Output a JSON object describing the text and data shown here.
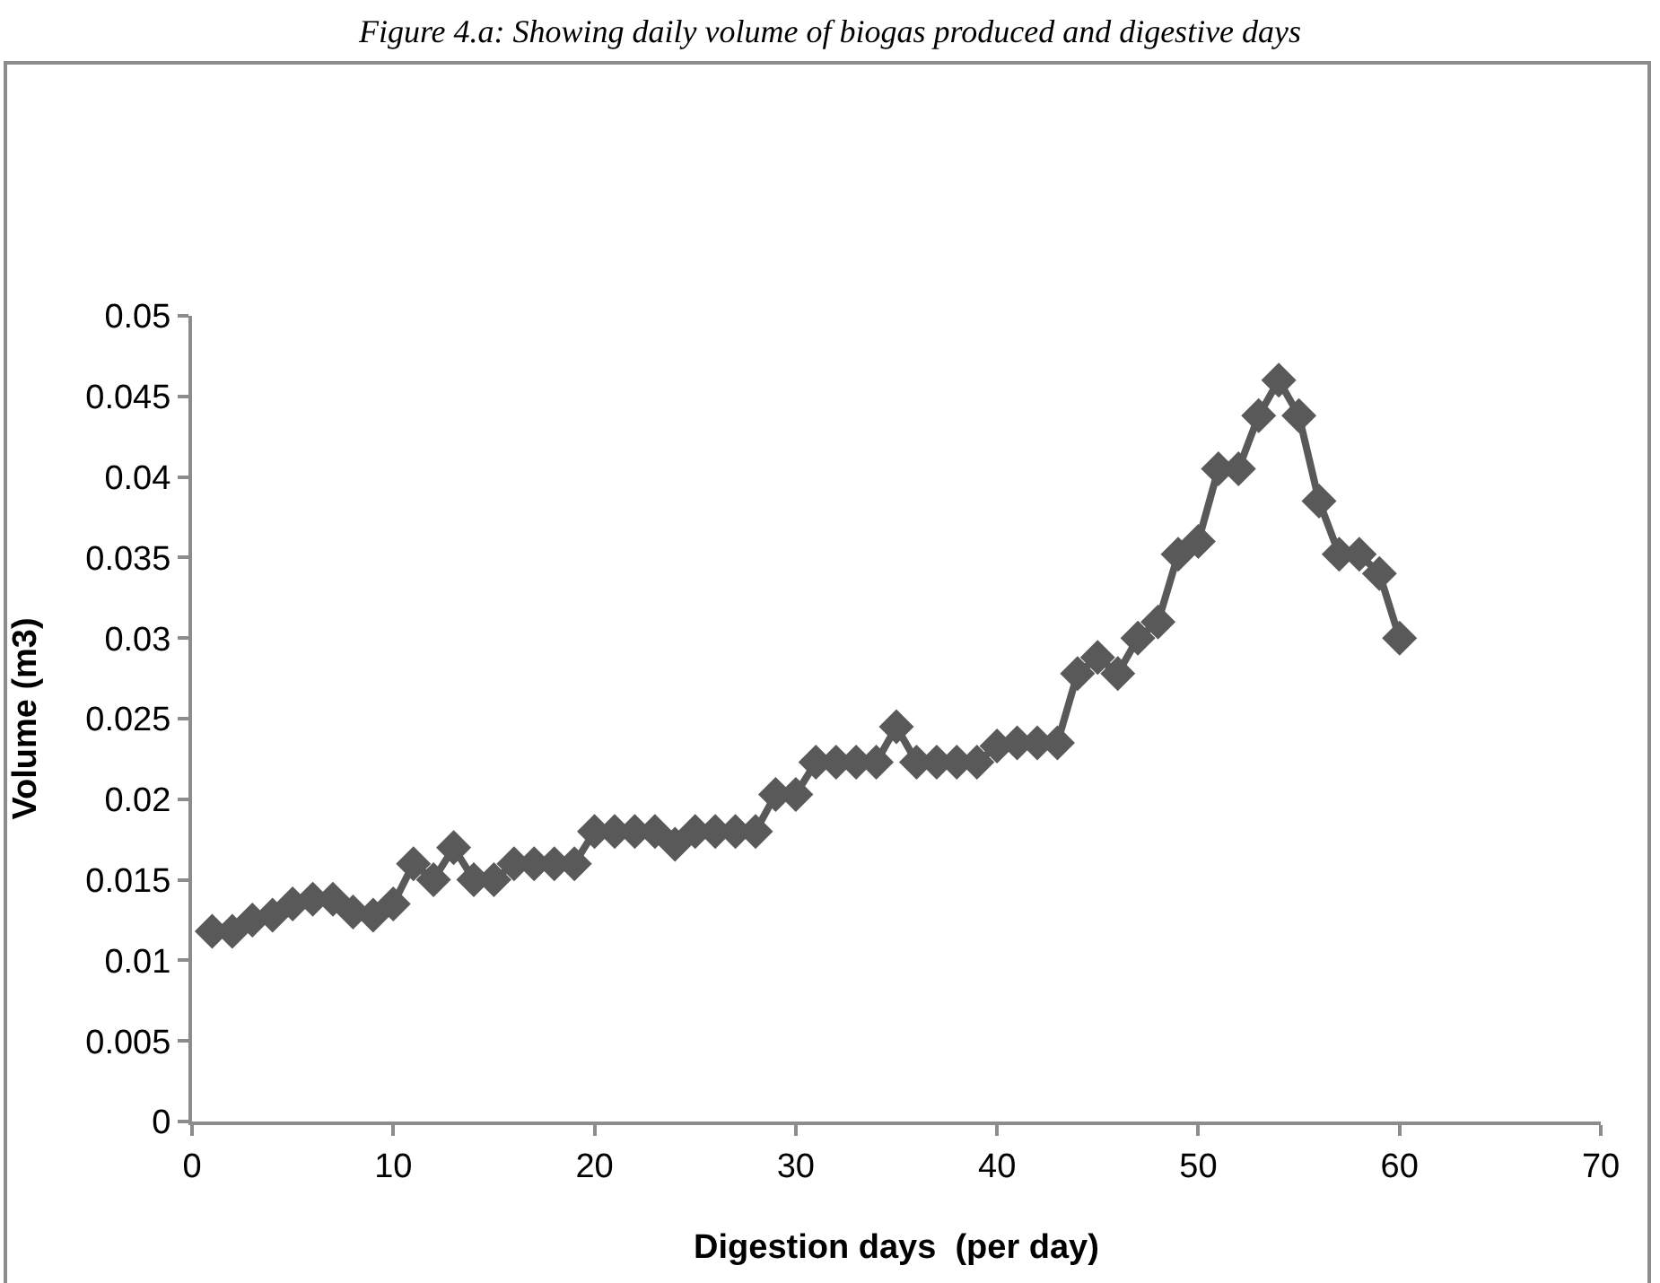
{
  "chart_data": {
    "type": "line",
    "title": "Figure 4.a: Showing daily volume of biogas produced and digestive days",
    "xlabel": "Digestion days  (per day)",
    "ylabel": "Volume (m3)",
    "x": [
      1,
      2,
      3,
      4,
      5,
      6,
      7,
      8,
      9,
      10,
      11,
      12,
      13,
      14,
      15,
      16,
      17,
      18,
      19,
      20,
      21,
      22,
      23,
      24,
      25,
      26,
      27,
      28,
      29,
      30,
      31,
      32,
      33,
      34,
      35,
      36,
      37,
      38,
      39,
      40,
      41,
      42,
      43,
      44,
      45,
      46,
      47,
      48,
      49,
      50,
      51,
      52,
      53,
      54,
      55,
      56,
      57,
      58,
      59,
      60
    ],
    "series": [
      {
        "color": "#595959",
        "values": [
          0.0118,
          0.0118,
          0.0125,
          0.0128,
          0.0135,
          0.0138,
          0.0138,
          0.013,
          0.0128,
          0.0135,
          0.016,
          0.015,
          0.017,
          0.015,
          0.015,
          0.016,
          0.016,
          0.016,
          0.016,
          0.018,
          0.018,
          0.018,
          0.018,
          0.0172,
          0.018,
          0.018,
          0.018,
          0.018,
          0.0203,
          0.0203,
          0.0223,
          0.0223,
          0.0223,
          0.0223,
          0.0245,
          0.0223,
          0.0223,
          0.0223,
          0.0223,
          0.0233,
          0.0235,
          0.0235,
          0.0235,
          0.0278,
          0.0288,
          0.0278,
          0.03,
          0.031,
          0.0352,
          0.036,
          0.0405,
          0.0405,
          0.0438,
          0.046,
          0.0438,
          0.0385,
          0.0352,
          0.0352,
          0.034,
          0.03
        ]
      }
    ],
    "xlim": [
      0,
      70
    ],
    "xticks": [
      0,
      10,
      20,
      30,
      40,
      50,
      60,
      70
    ],
    "ylim": [
      0,
      0.05
    ],
    "yticks": [
      0,
      0.005,
      0.01,
      0.015,
      0.02,
      0.025,
      0.03,
      0.035,
      0.04,
      0.045,
      0.05
    ],
    "grid": false,
    "marker": "diamond",
    "line_style": "solid"
  }
}
